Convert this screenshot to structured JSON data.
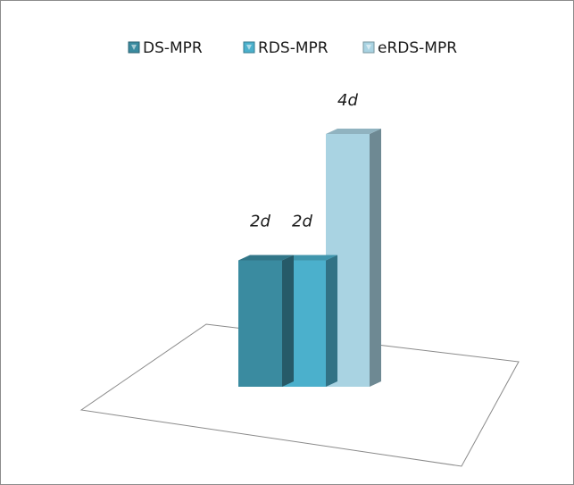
{
  "chart_data": {
    "type": "bar",
    "categories": [
      ""
    ],
    "series": [
      {
        "name": "DS-MPR",
        "values": [
          2
        ],
        "label": "2d",
        "color": "#3a8ba0"
      },
      {
        "name": "RDS-MPR",
        "values": [
          2
        ],
        "label": "2d",
        "color": "#4bb0cc"
      },
      {
        "name": "eRDS-MPR",
        "values": [
          4
        ],
        "label": "4d",
        "color": "#a9d3e2"
      }
    ],
    "title": "",
    "xlabel": "",
    "ylabel": "",
    "ylim": [
      0,
      4
    ],
    "grid": false,
    "legend_position": "top-center",
    "style": "3d-column"
  }
}
